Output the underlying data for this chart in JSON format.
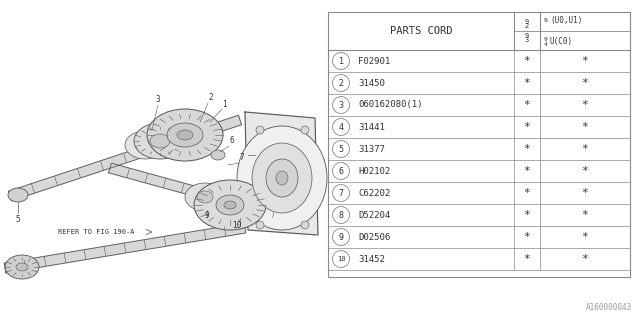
{
  "bg_color": "#ffffff",
  "rows": [
    {
      "num": "1",
      "code": "F02901"
    },
    {
      "num": "2",
      "code": "31450"
    },
    {
      "num": "3",
      "code": "060162080(1)"
    },
    {
      "num": "4",
      "code": "31441"
    },
    {
      "num": "5",
      "code": "31377"
    },
    {
      "num": "6",
      "code": "H02102"
    },
    {
      "num": "7",
      "code": "C62202"
    },
    {
      "num": "8",
      "code": "D52204"
    },
    {
      "num": "9",
      "code": "D02506"
    },
    {
      "num": "10",
      "code": "31452"
    }
  ],
  "watermark": "A160000043",
  "ref_text": "REFER TO FIG 190-A",
  "lc": "#888888",
  "gc": "#555555",
  "tc": "#333333"
}
